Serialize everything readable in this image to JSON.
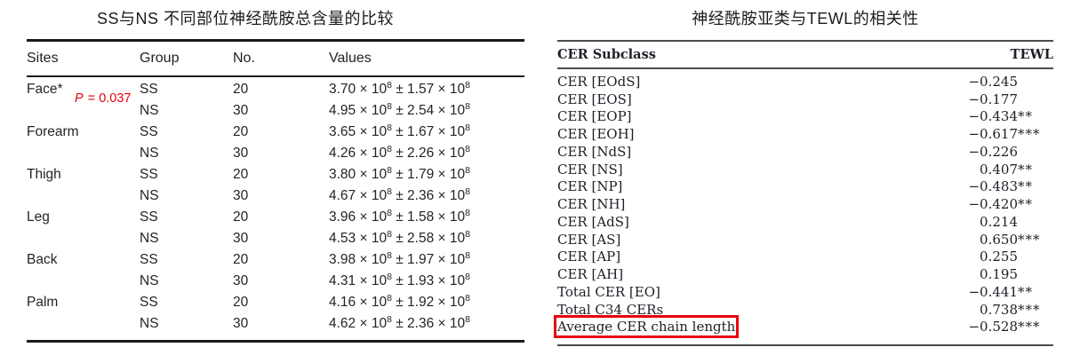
{
  "accent_red": "#e8000d",
  "left_table": {
    "title": "SS与NS 不同部位神经酰胺总含量的比较",
    "columns": [
      "Sites",
      "Group",
      "No.",
      "Values"
    ],
    "p_annotation": {
      "symbol": "P",
      "rest": " = 0.037"
    },
    "value_format": {
      "times": "×",
      "plusminus": "±",
      "base": "10",
      "exponent": "8"
    },
    "rows": [
      {
        "site": "Face*",
        "group": "SS",
        "no": "20",
        "mean": "3.70",
        "sd": "1.57"
      },
      {
        "site": "",
        "group": "NS",
        "no": "30",
        "mean": "4.95",
        "sd": "2.54"
      },
      {
        "site": "Forearm",
        "group": "SS",
        "no": "20",
        "mean": "3.65",
        "sd": "1.67"
      },
      {
        "site": "",
        "group": "NS",
        "no": "30",
        "mean": "4.26",
        "sd": "2.26"
      },
      {
        "site": "Thigh",
        "group": "SS",
        "no": "20",
        "mean": "3.80",
        "sd": "1.79"
      },
      {
        "site": "",
        "group": "NS",
        "no": "30",
        "mean": "4.67",
        "sd": "2.36"
      },
      {
        "site": "Leg",
        "group": "SS",
        "no": "20",
        "mean": "3.96",
        "sd": "1.58"
      },
      {
        "site": "",
        "group": "NS",
        "no": "30",
        "mean": "4.53",
        "sd": "2.58"
      },
      {
        "site": "Back",
        "group": "SS",
        "no": "20",
        "mean": "3.98",
        "sd": "1.97"
      },
      {
        "site": "",
        "group": "NS",
        "no": "30",
        "mean": "4.31",
        "sd": "1.93"
      },
      {
        "site": "Palm",
        "group": "SS",
        "no": "20",
        "mean": "4.16",
        "sd": "1.92"
      },
      {
        "site": "",
        "group": "NS",
        "no": "30",
        "mean": "4.62",
        "sd": "2.36"
      }
    ]
  },
  "right_table": {
    "title": "神经酰胺亚类与TEWL的相关性",
    "columns": [
      "CER Subclass",
      "TEWL"
    ],
    "rows": [
      {
        "label": "CER [EOdS]",
        "sign": "−",
        "num": "0.245",
        "stars": ""
      },
      {
        "label": "CER [EOS]",
        "sign": "−",
        "num": "0.177",
        "stars": ""
      },
      {
        "label": "CER [EOP]",
        "sign": "−",
        "num": "0.434",
        "stars": "**"
      },
      {
        "label": "CER [EOH]",
        "sign": "−",
        "num": "0.617",
        "stars": "***"
      },
      {
        "label": "CER [NdS]",
        "sign": "−",
        "num": "0.226",
        "stars": ""
      },
      {
        "label": "CER [NS]",
        "sign": "",
        "num": "0.407",
        "stars": "**"
      },
      {
        "label": "CER [NP]",
        "sign": "−",
        "num": "0.483",
        "stars": "**"
      },
      {
        "label": "CER [NH]",
        "sign": "−",
        "num": "0.420",
        "stars": "**"
      },
      {
        "label": "CER [AdS]",
        "sign": "",
        "num": "0.214",
        "stars": ""
      },
      {
        "label": "CER [AS]",
        "sign": "",
        "num": "0.650",
        "stars": "***"
      },
      {
        "label": "CER [AP]",
        "sign": "",
        "num": "0.255",
        "stars": ""
      },
      {
        "label": "CER [AH]",
        "sign": "",
        "num": "0.195",
        "stars": ""
      },
      {
        "label": "Total CER [EO]",
        "sign": "−",
        "num": "0.441",
        "stars": "**"
      },
      {
        "label": "Total C34 CERs",
        "sign": "",
        "num": "0.738",
        "stars": "***"
      },
      {
        "label": "Average CER chain length",
        "sign": "−",
        "num": "0.528",
        "stars": "***",
        "highlighted": true
      }
    ]
  }
}
